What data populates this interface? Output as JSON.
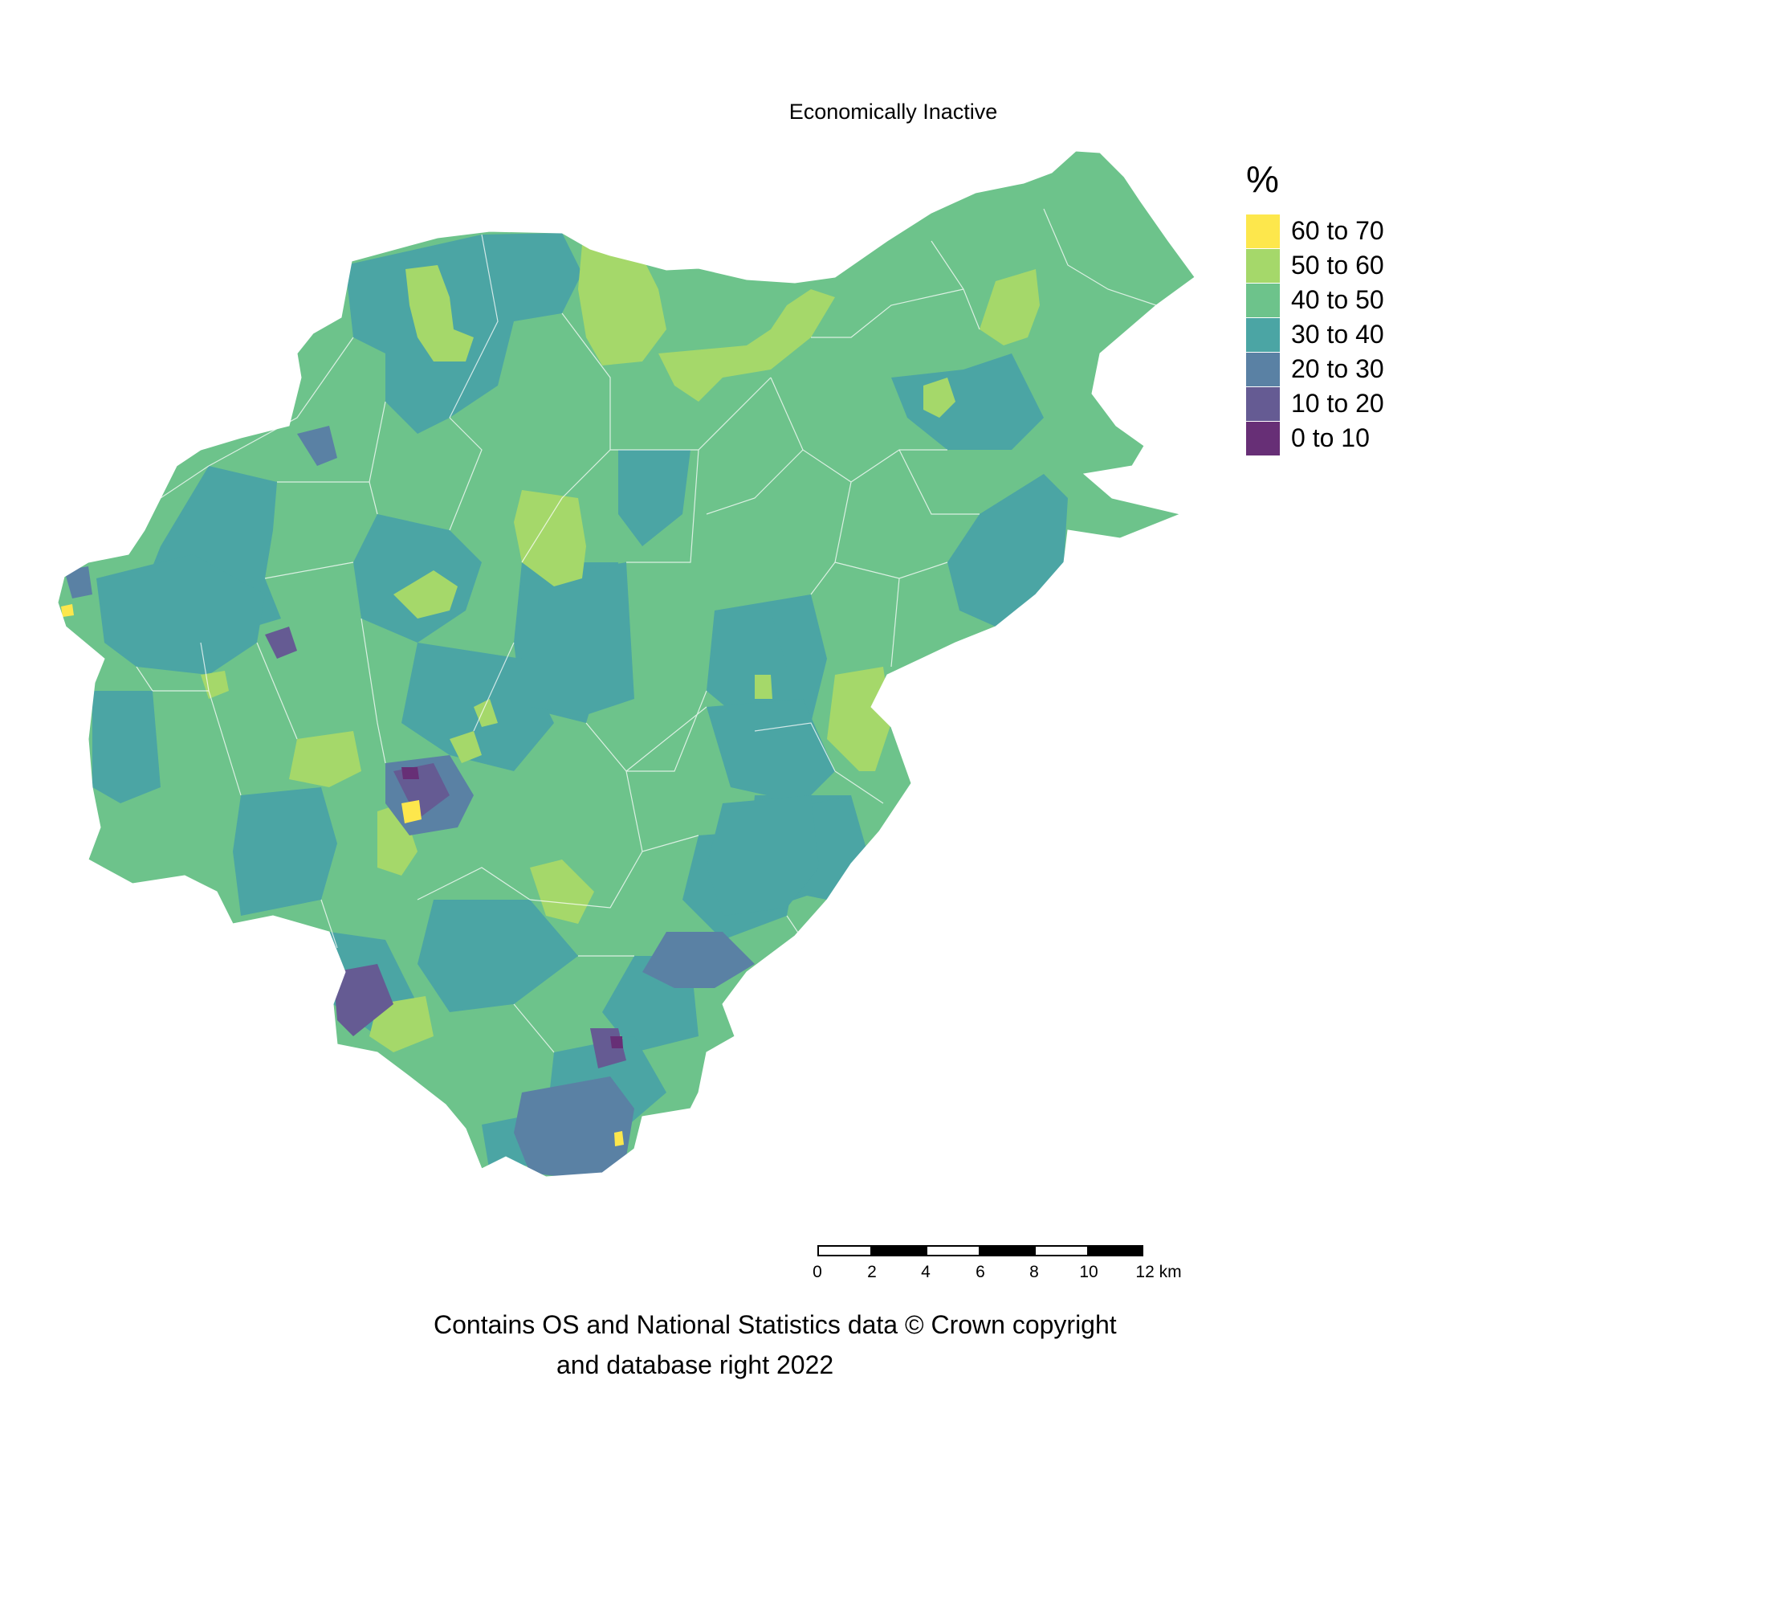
{
  "title": "Economically Inactive",
  "legend": {
    "title": "%",
    "items": [
      {
        "label": "60 to 70",
        "color": "#fde74c"
      },
      {
        "label": "50 to 60",
        "color": "#a5d86a"
      },
      {
        "label": "40 to 50",
        "color": "#6dc38b"
      },
      {
        "label": "30 to 40",
        "color": "#4ba5a4"
      },
      {
        "label": "20 to 30",
        "color": "#5a81a4"
      },
      {
        "label": "10 to 20",
        "color": "#655b93"
      },
      {
        "label": "0 to 10",
        "color": "#672f76"
      }
    ]
  },
  "scalebar": {
    "ticks": [
      "0",
      "2",
      "4",
      "6",
      "8",
      "10",
      "12 km"
    ]
  },
  "attribution": {
    "line1": "Contains OS and National Statistics data © Crown copyright",
    "line2": "and database right 2022"
  }
}
